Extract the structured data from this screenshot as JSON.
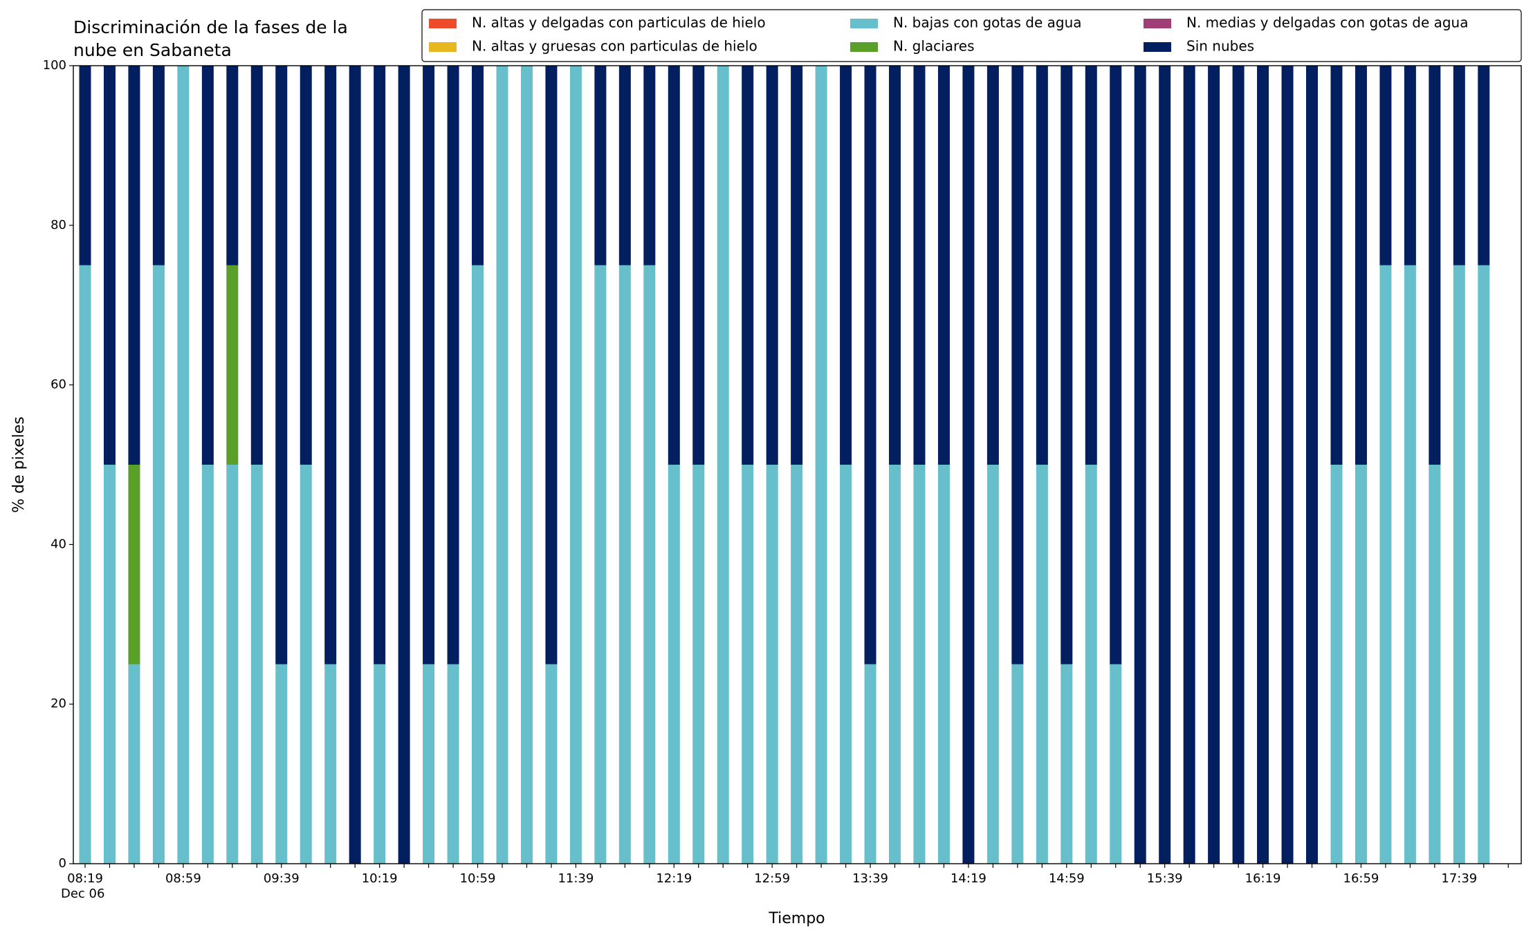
{
  "chart_data": {
    "type": "stacked_bar",
    "title": [
      "Discriminación de la fases de la",
      "nube en Sabaneta"
    ],
    "xlabel": "Tiempo",
    "ylabel": "% de pixeles",
    "date_label": "Dec 06",
    "categories": [
      "08:19",
      null,
      null,
      null,
      "08:59",
      null,
      null,
      null,
      "09:39",
      null,
      null,
      null,
      "10:19",
      null,
      null,
      null,
      "10:59",
      null,
      null,
      null,
      "11:39",
      null,
      null,
      null,
      "12:19",
      null,
      null,
      null,
      "12:59",
      null,
      null,
      null,
      "13:39",
      null,
      null,
      null,
      "14:19",
      null,
      null,
      null,
      "14:59",
      null,
      null,
      null,
      "15:39",
      null,
      null,
      null,
      "16:19",
      null,
      null,
      null,
      "16:59",
      null,
      null,
      null,
      "17:39",
      null
    ],
    "series": [
      {
        "name": "N. altas y delgadas con particulas de hielo",
        "color": "#ee4b2b",
        "values": [
          0,
          0,
          0,
          0,
          0,
          0,
          0,
          0,
          0,
          0,
          0,
          0,
          0,
          0,
          0,
          0,
          0,
          0,
          0,
          0,
          0,
          0,
          0,
          0,
          0,
          0,
          0,
          0,
          0,
          0,
          0,
          0,
          0,
          0,
          0,
          0,
          0,
          0,
          0,
          0,
          0,
          0,
          0,
          0,
          0,
          0,
          0,
          0,
          0,
          0,
          0,
          0,
          0,
          0,
          0,
          0,
          0,
          0
        ]
      },
      {
        "name": "N. altas y gruesas con particulas de hielo",
        "color": "#e6b81d",
        "values": [
          0,
          0,
          0,
          0,
          0,
          0,
          0,
          0,
          0,
          0,
          0,
          0,
          0,
          0,
          0,
          0,
          0,
          0,
          0,
          0,
          0,
          0,
          0,
          0,
          0,
          0,
          0,
          0,
          0,
          0,
          0,
          0,
          0,
          0,
          0,
          0,
          0,
          0,
          0,
          0,
          0,
          0,
          0,
          0,
          0,
          0,
          0,
          0,
          0,
          0,
          0,
          0,
          0,
          0,
          0,
          0,
          0,
          0
        ]
      },
      {
        "name": "N. bajas con gotas de agua",
        "color": "#66bfca",
        "values": [
          75,
          50,
          25,
          75,
          100,
          50,
          50,
          50,
          25,
          50,
          25,
          0,
          25,
          0,
          25,
          25,
          75,
          100,
          100,
          25,
          100,
          75,
          75,
          75,
          50,
          50,
          100,
          50,
          50,
          50,
          100,
          50,
          25,
          50,
          50,
          50,
          0,
          50,
          25,
          50,
          25,
          50,
          25,
          0,
          0,
          0,
          0,
          0,
          0,
          0,
          0,
          50,
          50,
          75,
          75,
          50,
          75,
          75
        ]
      },
      {
        "name": "N. glaciares",
        "color": "#5b9f2b",
        "values": [
          0,
          0,
          25,
          0,
          0,
          0,
          25,
          0,
          0,
          0,
          0,
          0,
          0,
          0,
          0,
          0,
          0,
          0,
          0,
          0,
          0,
          0,
          0,
          0,
          0,
          0,
          0,
          0,
          0,
          0,
          0,
          0,
          0,
          0,
          0,
          0,
          0,
          0,
          0,
          0,
          0,
          0,
          0,
          0,
          0,
          0,
          0,
          0,
          0,
          0,
          0,
          0,
          0,
          0,
          0,
          0,
          0,
          0
        ]
      },
      {
        "name": "N. medias y delgadas con gotas de agua",
        "color": "#a03d76",
        "values": [
          0,
          0,
          0,
          0,
          0,
          0,
          0,
          0,
          0,
          0,
          0,
          0,
          0,
          0,
          0,
          0,
          0,
          0,
          0,
          0,
          0,
          0,
          0,
          0,
          0,
          0,
          0,
          0,
          0,
          0,
          0,
          0,
          0,
          0,
          0,
          0,
          0,
          0,
          0,
          0,
          0,
          0,
          0,
          0,
          0,
          0,
          0,
          0,
          0,
          0,
          0,
          0,
          0,
          0,
          0,
          0,
          0,
          0
        ]
      },
      {
        "name": "Sin nubes",
        "color": "#031f5f",
        "values": [
          25,
          50,
          50,
          25,
          0,
          50,
          25,
          50,
          75,
          50,
          75,
          100,
          75,
          100,
          75,
          75,
          25,
          0,
          0,
          75,
          0,
          25,
          25,
          25,
          50,
          50,
          0,
          50,
          50,
          50,
          0,
          50,
          75,
          50,
          50,
          50,
          100,
          50,
          75,
          50,
          75,
          50,
          75,
          100,
          100,
          100,
          100,
          100,
          100,
          100,
          100,
          50,
          50,
          25,
          25,
          50,
          25,
          25
        ]
      }
    ],
    "ylim": [
      0,
      100
    ],
    "yticks": [
      0,
      20,
      40,
      60,
      80,
      100
    ],
    "grid": false
  }
}
